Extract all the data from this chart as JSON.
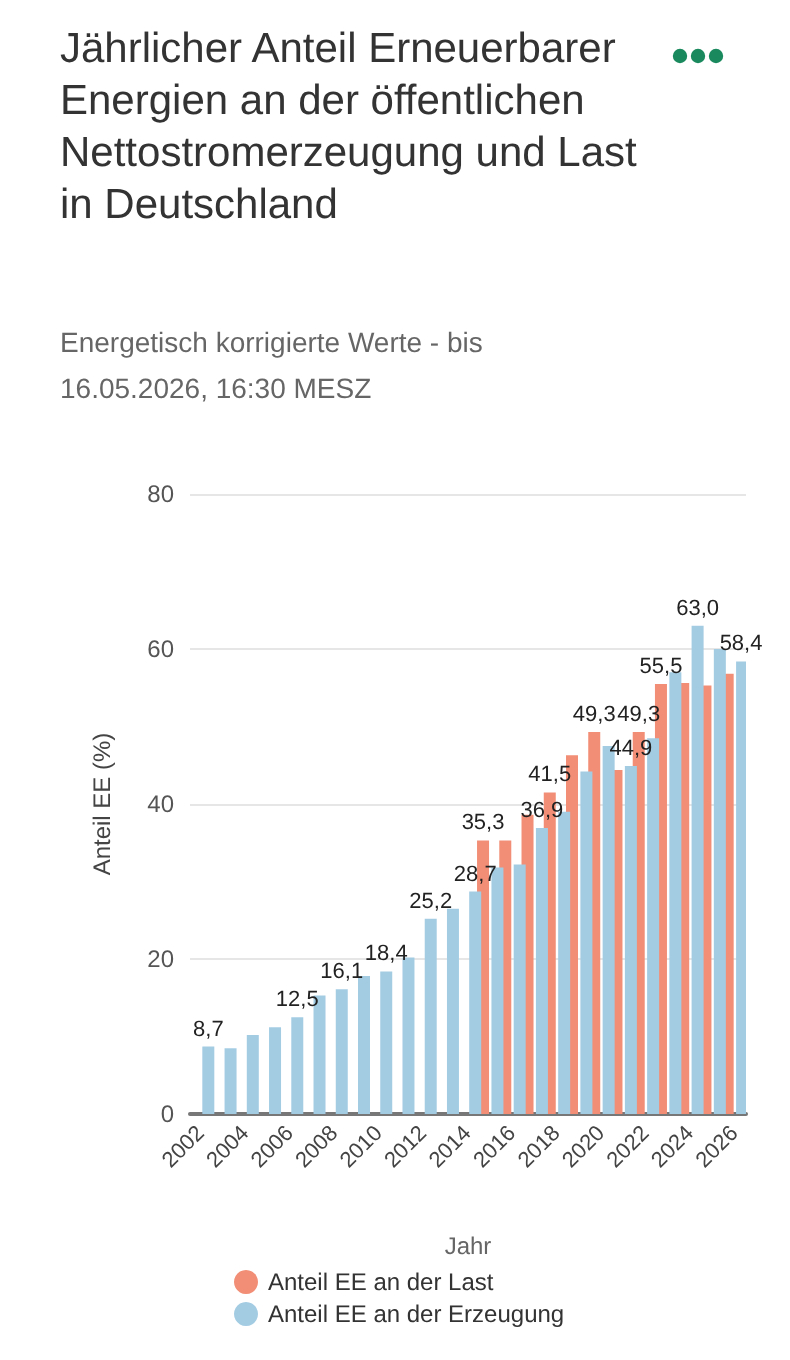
{
  "chart_data": {
    "type": "bar",
    "title": "Jährlicher Anteil Erneuerbarer Energien an der öffentlichen Nettostromerzeugung und Last in Deutschland",
    "subtitle": "Energetisch korrigierte Werte - bis 16.05.2026, 16:30 MESZ",
    "xlabel": "Jahr",
    "ylabel": "Anteil EE (%)",
    "categories": [
      "2002",
      null,
      "2004",
      null,
      "2006",
      null,
      "2008",
      null,
      "2010",
      null,
      "2012",
      null,
      "2014",
      null,
      "2016",
      null,
      "2018",
      null,
      "2020",
      null,
      "2022",
      null,
      "2024",
      null,
      "2026"
    ],
    "series": [
      {
        "name": "Anteil EE an der Last",
        "color": "#f28e76",
        "values": [
          null,
          null,
          null,
          null,
          null,
          null,
          null,
          null,
          null,
          null,
          null,
          null,
          null,
          35.3,
          35.3,
          38.6,
          41.5,
          46.3,
          49.3,
          44.4,
          49.3,
          55.5,
          55.6,
          55.3,
          56.8
        ],
        "value_labels": [
          null,
          null,
          null,
          null,
          null,
          null,
          null,
          null,
          null,
          null,
          null,
          null,
          null,
          "35,3",
          null,
          null,
          "41,5",
          null,
          "49,3",
          null,
          "49,3",
          "55,5",
          null,
          null,
          null
        ]
      },
      {
        "name": "Anteil EE an der Erzeugung",
        "color": "#a3cce3",
        "values": [
          8.7,
          8.5,
          10.2,
          11.2,
          12.5,
          15.3,
          16.1,
          17.8,
          18.4,
          20.2,
          25.2,
          26.5,
          28.7,
          31.8,
          32.2,
          36.9,
          39.0,
          44.2,
          47.5,
          44.9,
          48.5,
          57.0,
          63.0,
          60.0,
          58.4
        ],
        "value_labels": [
          "8,7",
          null,
          null,
          null,
          "12,5",
          null,
          "16,1",
          null,
          "18,4",
          null,
          "25,2",
          null,
          "28,7",
          null,
          null,
          "36,9",
          null,
          null,
          null,
          "44,9",
          null,
          null,
          "63,0",
          null,
          "58,4"
        ]
      }
    ],
    "ylim": [
      0,
      80
    ],
    "yticks": [
      0,
      20,
      40,
      60,
      80
    ],
    "grid": "y",
    "legend": "bottom left"
  }
}
